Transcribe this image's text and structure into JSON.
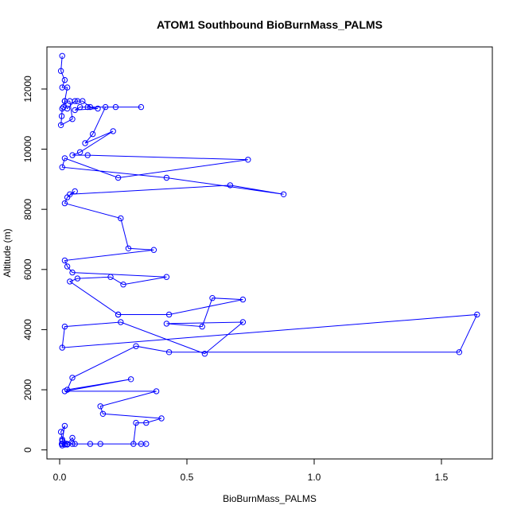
{
  "chart_data": {
    "type": "line",
    "title": "ATOM1 Southbound BioBurnMass_PALMS",
    "xlabel": "BioBurnMass_PALMS",
    "ylabel": "Altitude (m)",
    "xlim": [
      -0.05,
      1.7
    ],
    "ylim": [
      -300,
      13400
    ],
    "xticks": [
      0,
      0.5,
      1.0,
      1.5
    ],
    "xtick_labels": [
      "0.0",
      "0.5",
      "1.0",
      "1.5"
    ],
    "yticks": [
      0,
      2000,
      4000,
      6000,
      8000,
      10000,
      12000
    ],
    "ytick_labels": [
      "0",
      "2000",
      "4000",
      "6000",
      "8000",
      "10000",
      "12000"
    ],
    "grid": false,
    "legend": "none",
    "marker": "open-circle",
    "series_color": "#0000ff",
    "series": [
      {
        "x": [
          0.01,
          0.005,
          0.02,
          0.01,
          0.03,
          0.02,
          0.015,
          0.01,
          0.008,
          0.005,
          0.05,
          0.04,
          0.02,
          0.03,
          0.06,
          0.07,
          0.09,
          0.12,
          0.08,
          0.06,
          0.15,
          0.11,
          0.32,
          0.22,
          0.18,
          0.13,
          0.1,
          0.21,
          0.08,
          0.05,
          0.11,
          0.74,
          0.23,
          0.02,
          0.01,
          0.42,
          0.88,
          0.67,
          0.04,
          0.06,
          0.03,
          0.02,
          0.24,
          0.27,
          0.37,
          0.02,
          0.03,
          0.05,
          0.42,
          0.25,
          0.2,
          0.07,
          0.04,
          0.23,
          0.23,
          0.43,
          0.72,
          0.6,
          0.56,
          0.42,
          0.72,
          0.57,
          0.24,
          0.02,
          0.01,
          1.64,
          1.57,
          0.43,
          0.3,
          0.05,
          0.03,
          0.28,
          0.02,
          0.38,
          0.16,
          0.17,
          0.4,
          0.34,
          0.3,
          0.29,
          0.32,
          0.34,
          0.16,
          0.12,
          0.05,
          0.01,
          0.005,
          0.02,
          0.01,
          0.03,
          0.06,
          0.05,
          0.03,
          0.02,
          0.01,
          0.008,
          0.02,
          0.01
        ],
        "y": [
          13100,
          12600,
          12300,
          12050,
          12050,
          11600,
          11400,
          11350,
          11100,
          10800,
          11000,
          11600,
          11600,
          11350,
          11600,
          11600,
          11600,
          11400,
          11400,
          11300,
          11350,
          11400,
          11400,
          11400,
          11400,
          10500,
          10200,
          10600,
          9900,
          9800,
          9800,
          9650,
          9050,
          9700,
          9400,
          9050,
          8500,
          8800,
          8500,
          8600,
          8400,
          8200,
          7700,
          6700,
          6650,
          6300,
          6100,
          5900,
          5750,
          5500,
          5750,
          5700,
          5600,
          4500,
          4500,
          4500,
          5000,
          5050,
          4100,
          4200,
          4250,
          3200,
          4250,
          4100,
          3400,
          4500,
          3250,
          3250,
          3450,
          2400,
          2000,
          2350,
          1950,
          1950,
          1450,
          1200,
          1050,
          900,
          900,
          200,
          200,
          200,
          200,
          200,
          200,
          350,
          600,
          800,
          300,
          180,
          200,
          400,
          200,
          180,
          150,
          200,
          180,
          200
        ]
      }
    ]
  }
}
